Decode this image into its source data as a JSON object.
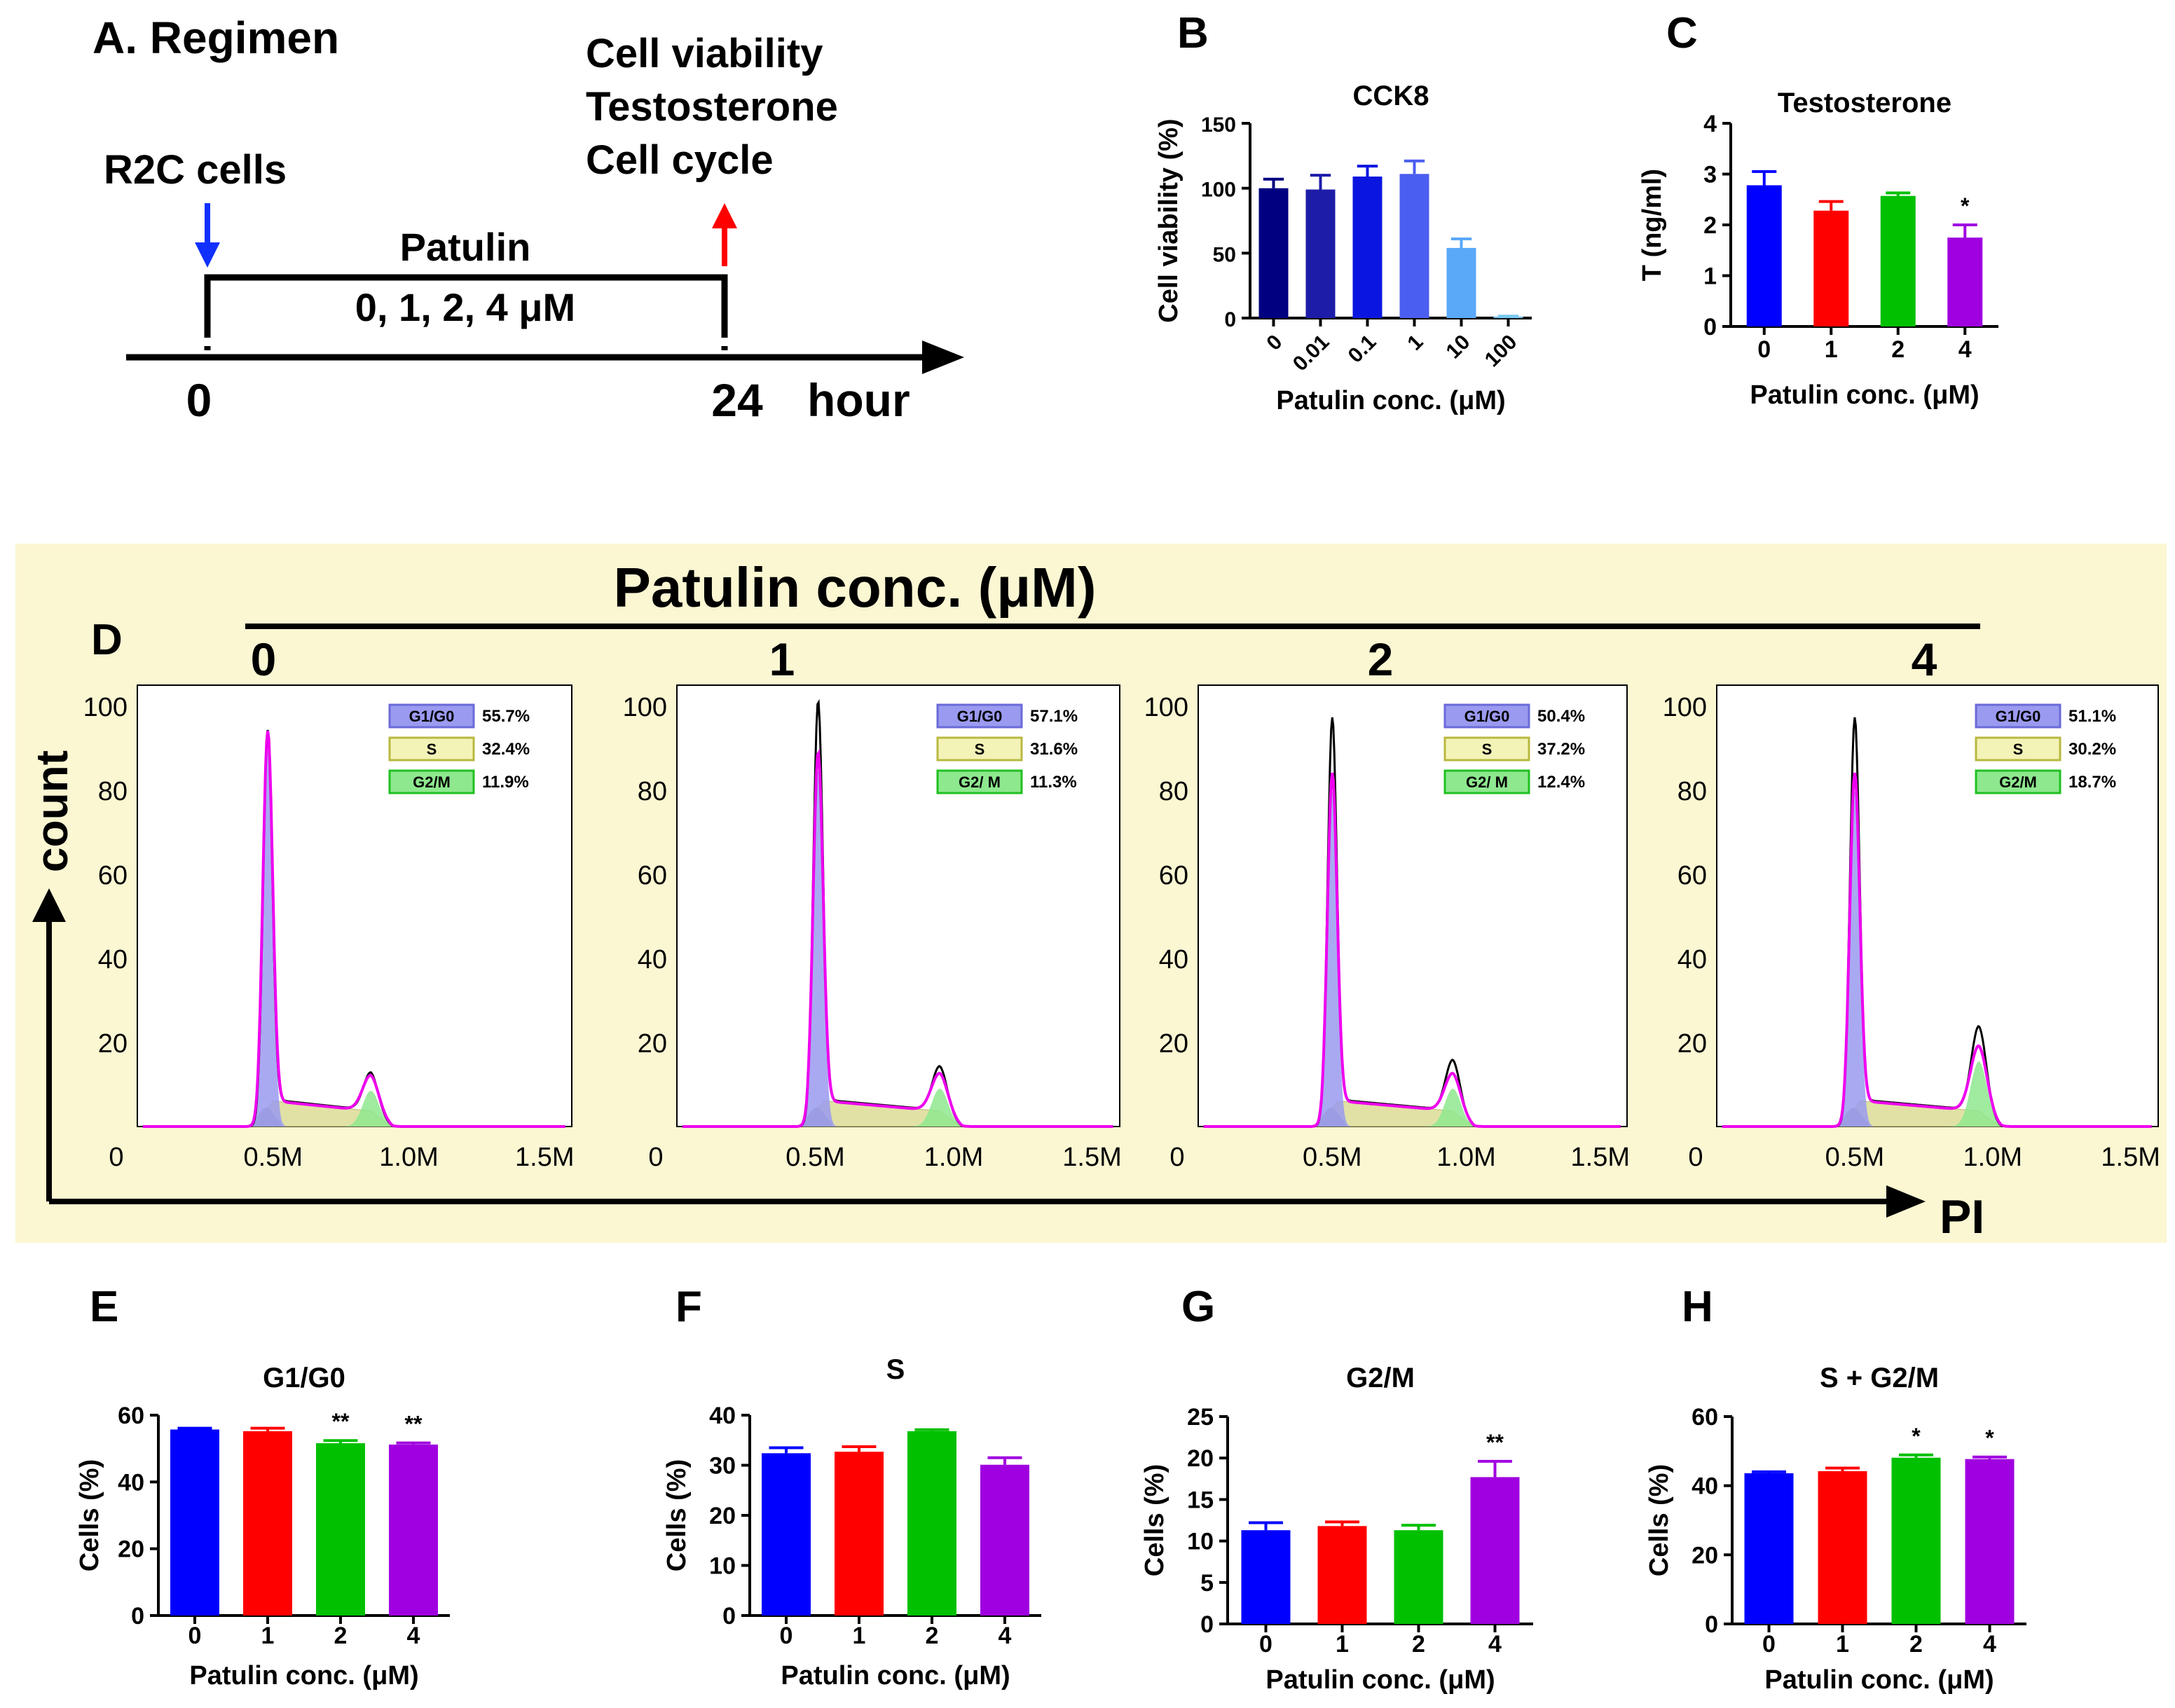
{
  "colors": {
    "black": "#000000",
    "d_panel_bg": "#fbf7d2",
    "blue_arrow": "#1030ff",
    "red_arrow": "#ff0000",
    "group_blue": "#0000ff",
    "group_red": "#ff0000",
    "group_green": "#00c000",
    "group_purple": "#a000e0",
    "cck8_shades": [
      "#000080",
      "#1c1ca8",
      "#0a16e0",
      "#4a5ef0",
      "#5aa8f8",
      "#78c8f0"
    ],
    "hist_outline": "#000000",
    "hist_fit": "#ee00ee",
    "hist_g1": "#9a9af0",
    "hist_s": "#dcdc96",
    "hist_g2": "#8ee88e",
    "hist_debris": "#a0a0a0"
  },
  "panelA": {
    "title": "A. Regimen",
    "cells_label": "R2C cells",
    "treatment_label": "Patulin",
    "doses_label": "0, 1, 2, 4 μM",
    "readouts": [
      "Cell viability",
      "Testosterone",
      "Cell cycle"
    ],
    "time_start": "0",
    "time_end": "24",
    "time_unit": "hour"
  },
  "panelD": {
    "letter": "D",
    "header": "Patulin conc. (μM)",
    "y_axis_label": "count",
    "x_axis_label": "PI",
    "y_ticks": [
      "100",
      "80",
      "60",
      "40",
      "20"
    ],
    "x_ticks": [
      "0",
      "0.5M",
      "1.0M",
      "1.5M"
    ],
    "panels": [
      {
        "conc": "0",
        "g1_label": "G1/G0",
        "g1": "55.7%",
        "s_label": "S",
        "s": "32.4%",
        "g2_label": "G2/M",
        "g2": "11.9%"
      },
      {
        "conc": "1",
        "g1_label": "G1/G0",
        "g1": "57.1%",
        "s_label": "S",
        "s": "31.6%",
        "g2_label": "G2/ M",
        "g2": "11.3%"
      },
      {
        "conc": "2",
        "g1_label": "G1/G0",
        "g1": "50.4%",
        "s_label": "S",
        "s": "37.2%",
        "g2_label": "G2/ M",
        "g2": "12.4%"
      },
      {
        "conc": "4",
        "g1_label": "G1/G0",
        "g1": "51.1%",
        "s_label": "S",
        "s": "30.2%",
        "g2_label": "G2/M",
        "g2": "18.7%"
      }
    ]
  },
  "chart_data": [
    {
      "id": "B",
      "letter": "B",
      "type": "bar",
      "title": "CCK8",
      "ylabel": "Cell viability (%)",
      "xlabel": "Patulin conc. (μM)",
      "categories": [
        "0",
        "0.01",
        "0.1",
        "1",
        "10",
        "100"
      ],
      "values": [
        100,
        99,
        109,
        111,
        54,
        1
      ],
      "errors": [
        7,
        11,
        8,
        10,
        7,
        0.5
      ],
      "ylim": [
        0,
        150
      ],
      "yticks": [
        0,
        50,
        100,
        150
      ],
      "significance": [
        "",
        "",
        "",
        "",
        "",
        ""
      ],
      "rotated_ticks": true
    },
    {
      "id": "C",
      "letter": "C",
      "type": "bar",
      "title": "Testosterone",
      "ylabel": "T (ng/ml)",
      "xlabel": "Patulin conc. (μM)",
      "categories": [
        "0",
        "1",
        "2",
        "4"
      ],
      "values": [
        2.78,
        2.28,
        2.57,
        1.75
      ],
      "errors": [
        0.27,
        0.18,
        0.06,
        0.25
      ],
      "ylim": [
        0,
        4
      ],
      "yticks": [
        0,
        1,
        2,
        3,
        4
      ],
      "significance": [
        "",
        "",
        "",
        "*"
      ]
    },
    {
      "id": "E",
      "letter": "E",
      "type": "bar",
      "title": "G1/G0",
      "ylabel": "Cells (%)",
      "xlabel": "Patulin conc. (μM)",
      "categories": [
        "0",
        "1",
        "2",
        "4"
      ],
      "values": [
        55.7,
        55.2,
        51.6,
        51.2
      ],
      "errors": [
        0.4,
        0.9,
        0.8,
        0.5
      ],
      "ylim": [
        0,
        60
      ],
      "yticks": [
        0,
        20,
        40,
        60
      ],
      "significance": [
        "",
        "",
        "**",
        "**"
      ]
    },
    {
      "id": "F",
      "letter": "F",
      "type": "bar",
      "title": "S",
      "ylabel": "Cells (%)",
      "xlabel": "Patulin conc. (μM)",
      "categories": [
        "0",
        "1",
        "2",
        "4"
      ],
      "values": [
        32.4,
        32.7,
        36.8,
        30.1
      ],
      "errors": [
        1.1,
        1.0,
        0.3,
        1.4
      ],
      "ylim": [
        0,
        40
      ],
      "yticks": [
        0,
        10,
        20,
        30,
        40
      ],
      "significance": [
        "",
        "",
        "",
        ""
      ]
    },
    {
      "id": "G",
      "letter": "G",
      "type": "bar",
      "title": "G2/M",
      "ylabel": "Cells (%)",
      "xlabel": "Patulin conc. (μM)",
      "categories": [
        "0",
        "1",
        "2",
        "4"
      ],
      "values": [
        11.3,
        11.8,
        11.3,
        17.7
      ],
      "errors": [
        0.9,
        0.5,
        0.6,
        1.9
      ],
      "ylim": [
        0,
        25
      ],
      "yticks": [
        0,
        5,
        10,
        15,
        20,
        25
      ],
      "significance": [
        "",
        "",
        "",
        "**"
      ]
    },
    {
      "id": "H",
      "letter": "H",
      "type": "bar",
      "title": "S + G2/M",
      "ylabel": "Cells (%)",
      "xlabel": "Patulin conc. (μM)",
      "categories": [
        "0",
        "1",
        "2",
        "4"
      ],
      "values": [
        43.6,
        44.2,
        48.1,
        47.7
      ],
      "errors": [
        0.4,
        0.9,
        0.8,
        0.6
      ],
      "ylim": [
        0,
        60
      ],
      "yticks": [
        0,
        20,
        40,
        60
      ],
      "significance": [
        "",
        "",
        "*",
        "*"
      ]
    }
  ]
}
